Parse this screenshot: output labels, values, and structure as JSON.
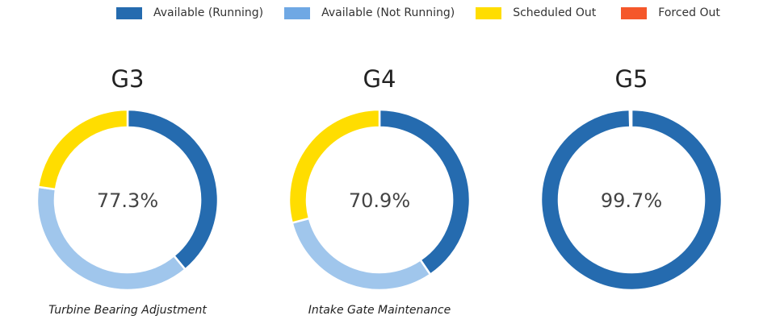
{
  "legend": [
    {
      "label": "Available (Running)",
      "color": "#256baf"
    },
    {
      "label": "Available (Not Running)",
      "color": "#6fa8e4"
    },
    {
      "label": "Scheduled Out",
      "color": "#ffdd00"
    },
    {
      "label": "Forced Out",
      "color": "#f5572a"
    }
  ],
  "chart_data": [
    {
      "type": "pie",
      "title": "G3",
      "center_label": "77.3%",
      "caption": "Turbine Bearing Adjustment",
      "slices": [
        {
          "name": "Available (Running)",
          "value": 39.0,
          "color": "#256baf"
        },
        {
          "name": "Available (Not Running)",
          "value": 38.3,
          "color": "#a0c6ec"
        },
        {
          "name": "Scheduled Out",
          "value": 22.7,
          "color": "#ffdd00"
        },
        {
          "name": "Forced Out",
          "value": 0,
          "color": "#f5572a"
        }
      ]
    },
    {
      "type": "pie",
      "title": "G4",
      "center_label": "70.9%",
      "caption": "Intake Gate Maintenance",
      "slices": [
        {
          "name": "Available (Running)",
          "value": 40.5,
          "color": "#256baf"
        },
        {
          "name": "Available (Not Running)",
          "value": 30.4,
          "color": "#a0c6ec"
        },
        {
          "name": "Scheduled Out",
          "value": 29.1,
          "color": "#ffdd00"
        },
        {
          "name": "Forced Out",
          "value": 0,
          "color": "#f5572a"
        }
      ]
    },
    {
      "type": "pie",
      "title": "G5",
      "center_label": "99.7%",
      "caption": "",
      "slices": [
        {
          "name": "Available (Running)",
          "value": 99.7,
          "color": "#256baf"
        },
        {
          "name": "Available (Not Running)",
          "value": 0,
          "color": "#a0c6ec"
        },
        {
          "name": "Scheduled Out",
          "value": 0,
          "color": "#ffdd00"
        },
        {
          "name": "Forced Out",
          "value": 0.3,
          "color": "#f5572a"
        }
      ]
    }
  ]
}
